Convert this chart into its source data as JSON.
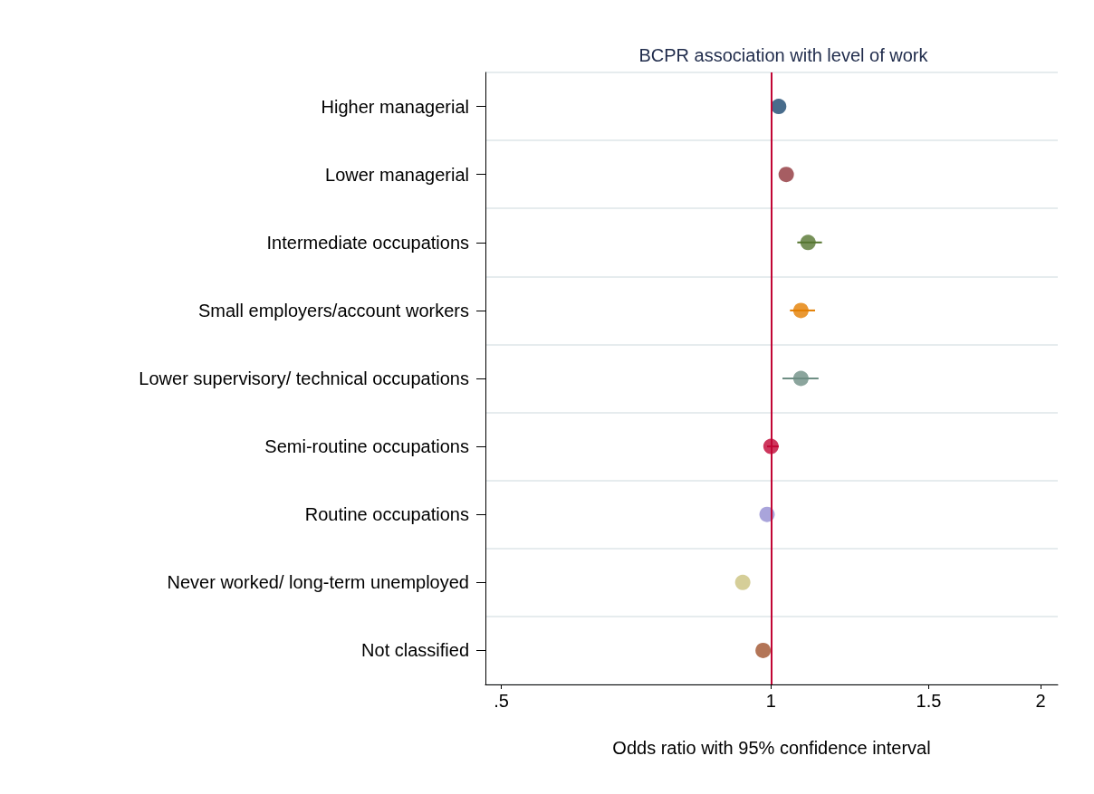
{
  "chart_data": {
    "type": "scatter",
    "orientation": "horizontal",
    "title": "BCPR association with level of work",
    "xlabel": "Odds ratio with 95% confidence interval",
    "categories": [
      "Higher managerial",
      "Lower managerial",
      "Intermediate occupations",
      "Small employers/account workers",
      "Lower supervisory/ technical occupations",
      "Semi-routine occupations",
      "Routine occupations",
      "Never worked/ long-term unemployed",
      "Not classified"
    ],
    "values": [
      1.02,
      1.04,
      1.1,
      1.08,
      1.08,
      1.0,
      0.99,
      0.93,
      0.98
    ],
    "errors": [
      null,
      null,
      [
        1.07,
        1.14
      ],
      [
        1.05,
        1.12
      ],
      [
        1.03,
        1.13
      ],
      [
        0.99,
        1.02
      ],
      null,
      null,
      null
    ],
    "colors": [
      "#1a476f",
      "#90353b",
      "#55752f",
      "#e37e00",
      "#6e8e84",
      "#c10534",
      "#938dd2",
      "#cac27e",
      "#a0522d"
    ],
    "xlim": [
      0.48,
      2.09
    ],
    "xticks": [
      {
        "value": 0.5,
        "label": ".5"
      },
      1,
      1.5,
      2
    ],
    "log": "x",
    "grid": "y",
    "marker": "circle",
    "ref_lines": [
      {
        "axis": "x",
        "value": 1,
        "color": "#c10534"
      }
    ]
  }
}
